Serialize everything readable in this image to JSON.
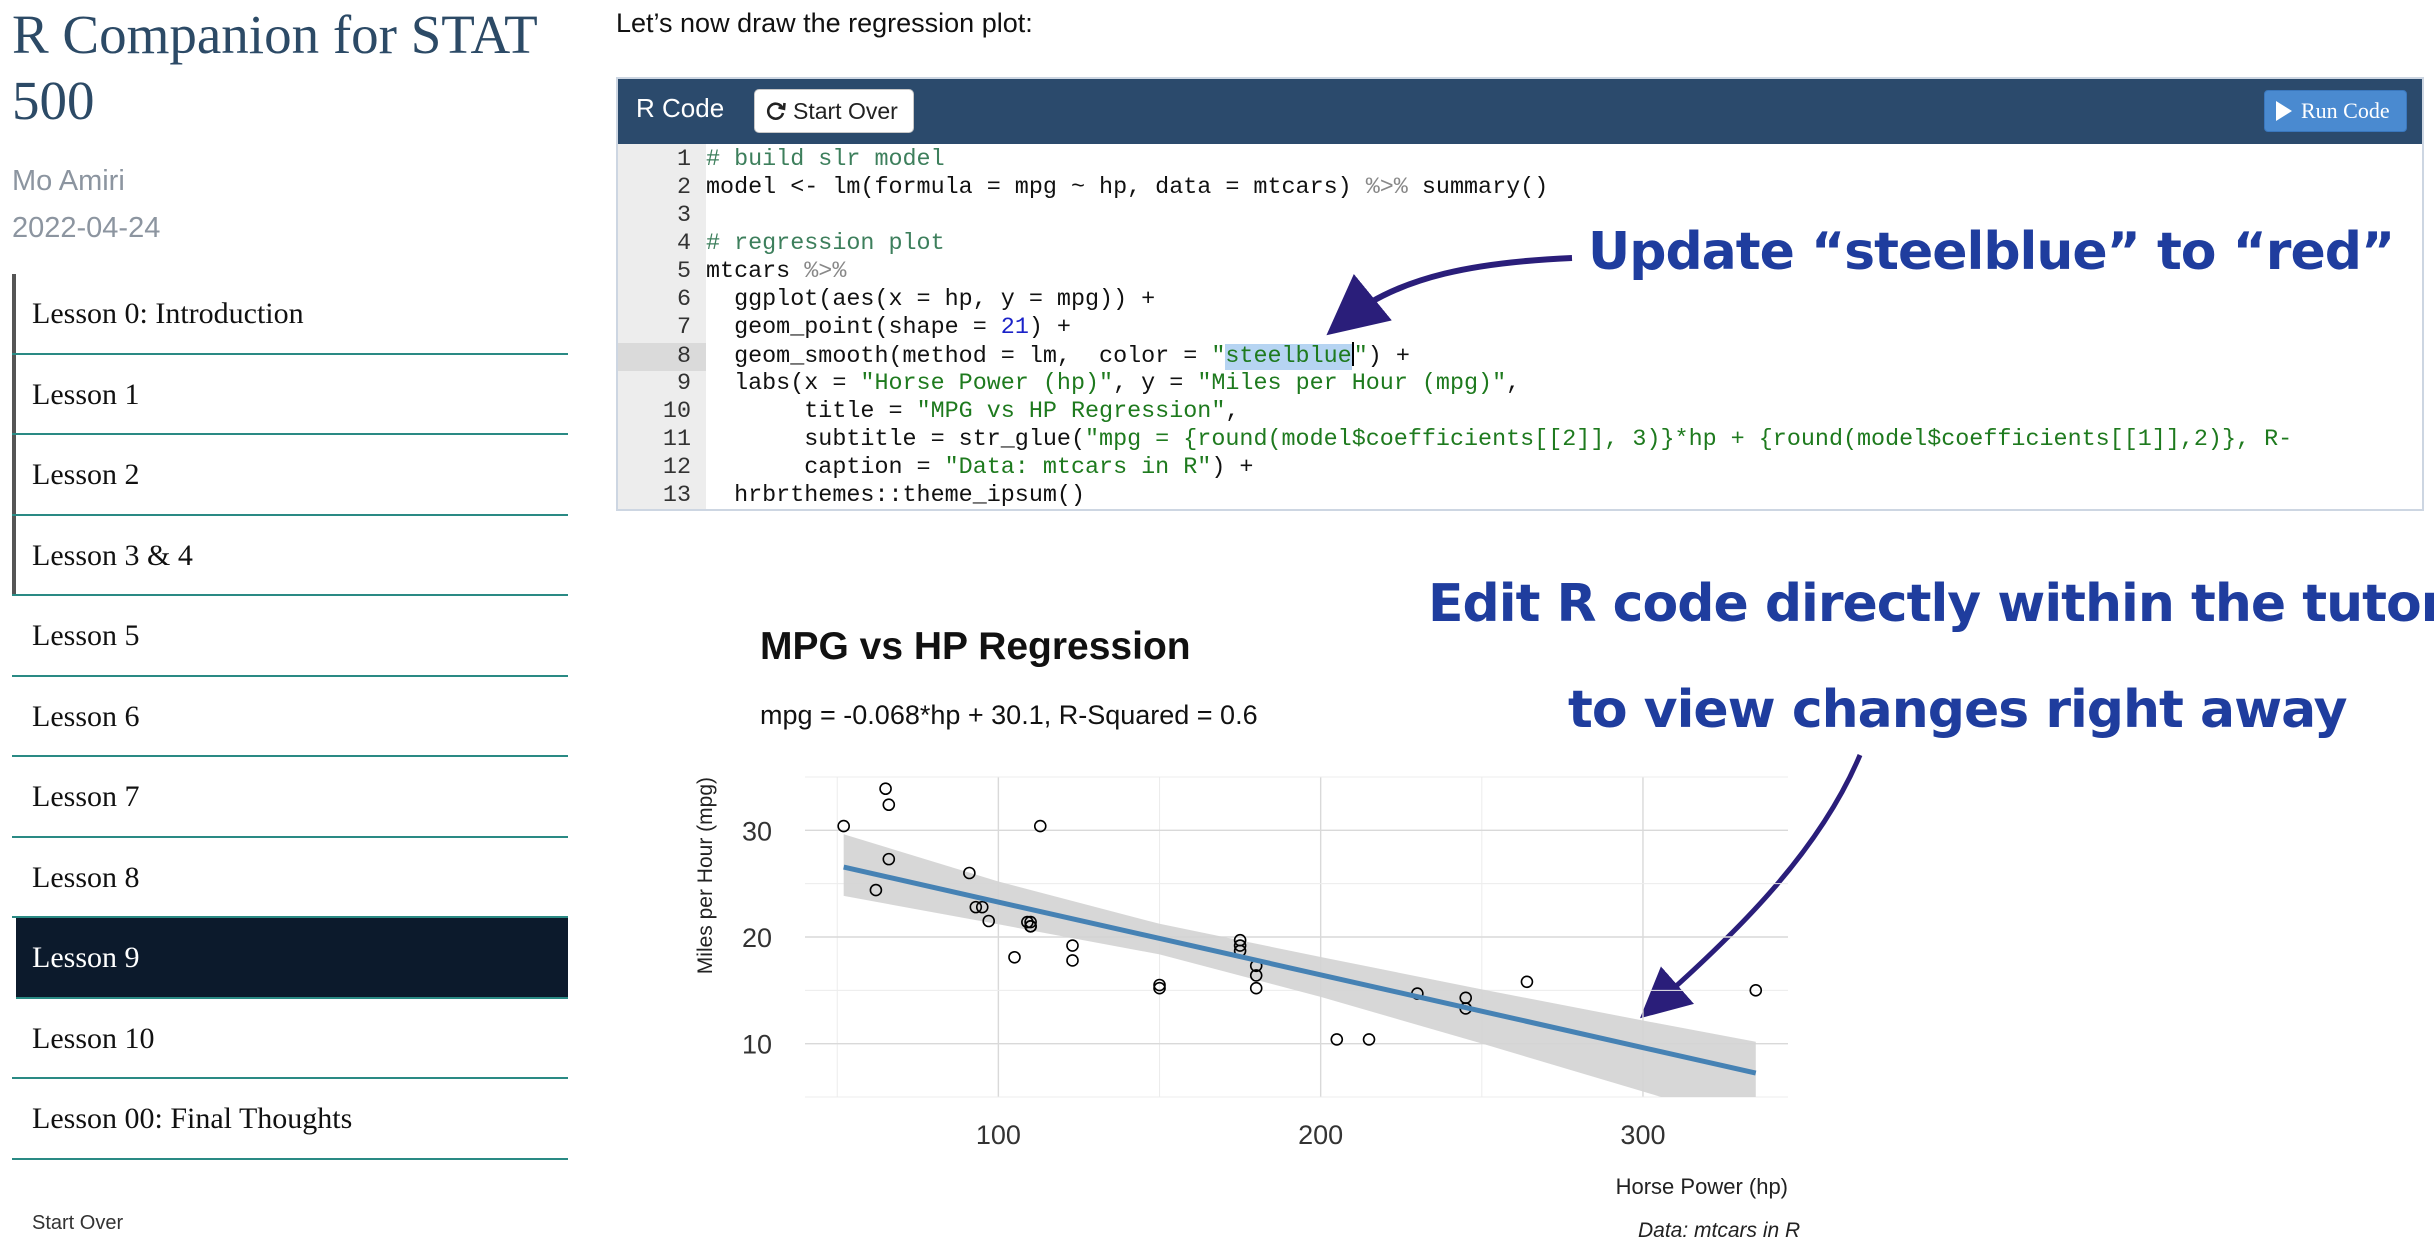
{
  "sidebar": {
    "title": "R Companion for STAT 500",
    "author": "Mo Amiri",
    "date": "2022-04-24",
    "lessons": [
      "Lesson 0: Introduction",
      "Lesson 1",
      "Lesson 2",
      "Lesson 3 & 4",
      "Lesson 5",
      "Lesson 6",
      "Lesson 7",
      "Lesson 8",
      "Lesson 9",
      "Lesson 10",
      "Lesson 00: Final Thoughts"
    ],
    "active_lesson": "Lesson 9",
    "start_over": "Start Over"
  },
  "main": {
    "intro": "Let’s now draw the regression plot:",
    "editor": {
      "label": "R Code",
      "start_over_label": "Start Over",
      "run_code_label": "Run Code",
      "current_line": 8,
      "lines": [
        "# build slr model",
        "model <- lm(formula = mpg ~ hp, data = mtcars) %>% summary()",
        "",
        "# regression plot",
        "mtcars %>%",
        "  ggplot(aes(x = hp, y = mpg)) +",
        "  geom_point(shape = 21) +",
        "  geom_smooth(method = lm,  color = \"steelblue\") +",
        "  labs(x = \"Horse Power (hp)\", y = \"Miles per Hour (mpg)\",",
        "       title = \"MPG vs HP Regression\",",
        "       subtitle = str_glue(\"mpg = {round(model$coefficients[[2]], 3)}*hp + {round(model$coefficients[[1]],2)}, R-",
        "       caption = \"Data: mtcars in R\") +",
        "  hrbrthemes::theme_ipsum()"
      ]
    }
  },
  "annotations": {
    "update_note": "Update “steelblue” to “red”",
    "edit_note_line1": "Edit R code directly within the tutorial",
    "edit_note_line2": "to view changes right away",
    "color": "#1f3d9e"
  },
  "colors": {
    "header": "#2b4a6c",
    "run_button": "#4a8ad0",
    "active_lesson_bg": "#0c1a2c",
    "lesson_divider": "#2a8a84",
    "regression_line": "#4682b4"
  },
  "chart_data": {
    "type": "scatter",
    "title": "MPG vs HP Regression",
    "subtitle": "mpg = -0.068*hp + 30.1, R-Squared = 0.6",
    "xlabel": "Horse Power (hp)",
    "ylabel": "Miles per Hour (mpg)",
    "caption": "Data: mtcars in R",
    "xlim": [
      40,
      345
    ],
    "ylim": [
      5,
      35
    ],
    "xticks": [
      100,
      200,
      300
    ],
    "yticks": [
      10,
      20,
      30
    ],
    "grid": true,
    "legend": "none",
    "points": [
      [
        110,
        21.0
      ],
      [
        110,
        21.0
      ],
      [
        93,
        22.8
      ],
      [
        110,
        21.4
      ],
      [
        175,
        18.7
      ],
      [
        105,
        18.1
      ],
      [
        245,
        14.3
      ],
      [
        62,
        24.4
      ],
      [
        95,
        22.8
      ],
      [
        123,
        19.2
      ],
      [
        123,
        17.8
      ],
      [
        180,
        16.4
      ],
      [
        180,
        17.3
      ],
      [
        180,
        15.2
      ],
      [
        205,
        10.4
      ],
      [
        215,
        10.4
      ],
      [
        230,
        14.7
      ],
      [
        66,
        32.4
      ],
      [
        52,
        30.4
      ],
      [
        65,
        33.9
      ],
      [
        97,
        21.5
      ],
      [
        150,
        15.5
      ],
      [
        150,
        15.2
      ],
      [
        245,
        13.3
      ],
      [
        175,
        19.2
      ],
      [
        66,
        27.3
      ],
      [
        91,
        26.0
      ],
      [
        113,
        30.4
      ],
      [
        264,
        15.8
      ],
      [
        175,
        19.7
      ],
      [
        335,
        15.0
      ],
      [
        109,
        21.4
      ]
    ],
    "fit": {
      "slope": -0.06823,
      "intercept": 30.0989,
      "x_range": [
        52,
        335
      ]
    },
    "band": [
      {
        "x": 52,
        "lo": 23.85,
        "hi": 29.63
      },
      {
        "x": 100,
        "lo": 21.19,
        "hi": 25.2
      },
      {
        "x": 150,
        "lo": 18.37,
        "hi": 21.24
      },
      {
        "x": 200,
        "lo": 14.39,
        "hi": 18.12
      },
      {
        "x": 250,
        "lo": 10.01,
        "hi": 15.09
      },
      {
        "x": 300,
        "lo": 5.52,
        "hi": 12.17
      },
      {
        "x": 335,
        "lo": 2.28,
        "hi": 10.18
      }
    ],
    "point_color": "#000000",
    "line_color": "#4682b4",
    "band_color": "#d3d3d3"
  }
}
